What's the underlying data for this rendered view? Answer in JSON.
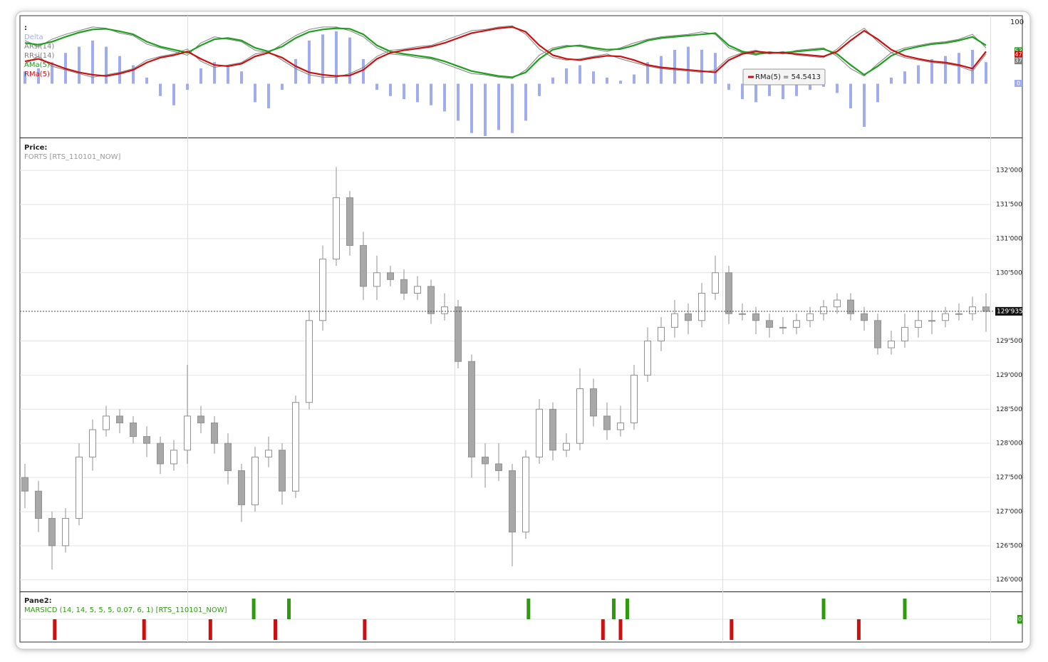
{
  "chart_data": [
    {
      "type": "indicator",
      "title": ":",
      "ylim": [
        0,
        100
      ],
      "yticks": [
        100
      ],
      "y2lim": [
        -85,
        100
      ],
      "series": [
        {
          "name": "Delta",
          "color": "#9fadf0",
          "kind": "bar",
          "axis": "y2",
          "values": [
            20,
            25,
            35,
            50,
            60,
            70,
            60,
            45,
            30,
            10,
            -20,
            -35,
            -10,
            25,
            35,
            30,
            20,
            -30,
            -40,
            -10,
            40,
            70,
            80,
            85,
            75,
            40,
            -10,
            -20,
            -25,
            -30,
            -35,
            -45,
            -60,
            -80,
            -85,
            -75,
            -80,
            -60,
            -20,
            10,
            25,
            30,
            20,
            10,
            5,
            15,
            35,
            45,
            55,
            60,
            55,
            50,
            -10,
            -25,
            -30,
            -20,
            -25,
            -20,
            -10,
            -5,
            -15,
            -40,
            -70,
            -30,
            10,
            20,
            30,
            40,
            45,
            50,
            55,
            35
          ]
        },
        {
          "name": "ARsi(14)",
          "color": "#808080",
          "kind": "line",
          "values": [
            70,
            60,
            72,
            80,
            86,
            92,
            90,
            82,
            78,
            64,
            58,
            52,
            46,
            66,
            76,
            72,
            68,
            54,
            50,
            64,
            78,
            88,
            92,
            92,
            86,
            76,
            58,
            48,
            46,
            42,
            40,
            32,
            24,
            16,
            14,
            10,
            8,
            22,
            46,
            58,
            62,
            60,
            56,
            52,
            58,
            66,
            72,
            76,
            78,
            80,
            84,
            80,
            58,
            50,
            46,
            52,
            48,
            54,
            56,
            58,
            44,
            24,
            12,
            32,
            50,
            58,
            62,
            66,
            68,
            72,
            80,
            58
          ]
        },
        {
          "name": "RRsi(14)",
          "color": "#808080",
          "kind": "line",
          "values": [
            32,
            44,
            28,
            22,
            16,
            10,
            14,
            18,
            24,
            38,
            44,
            48,
            56,
            36,
            26,
            30,
            34,
            48,
            52,
            38,
            24,
            14,
            10,
            10,
            16,
            26,
            44,
            54,
            56,
            60,
            62,
            70,
            78,
            86,
            88,
            92,
            94,
            80,
            56,
            42,
            38,
            40,
            44,
            48,
            40,
            34,
            28,
            24,
            22,
            20,
            18,
            22,
            42,
            50,
            54,
            48,
            52,
            46,
            44,
            42,
            56,
            76,
            90,
            68,
            50,
            42,
            38,
            34,
            32,
            28,
            20,
            48
          ]
        },
        {
          "name": "AMa(5)",
          "color": "#1ea01e",
          "kind": "line",
          "values": [
            66,
            63,
            68,
            76,
            83,
            88,
            89,
            85,
            80,
            68,
            60,
            55,
            50,
            62,
            72,
            74,
            70,
            58,
            52,
            60,
            74,
            84,
            88,
            90,
            89,
            80,
            62,
            52,
            48,
            45,
            42,
            36,
            28,
            20,
            16,
            12,
            10,
            18,
            40,
            55,
            60,
            62,
            58,
            55,
            56,
            62,
            70,
            74,
            76,
            78,
            80,
            82,
            62,
            52,
            48,
            50,
            50,
            52,
            54,
            56,
            48,
            30,
            14,
            28,
            45,
            55,
            60,
            64,
            66,
            70,
            76,
            62
          ]
        },
        {
          "name": "RMa(5)",
          "color": "#cc1010",
          "kind": "line",
          "values": [
            36,
            40,
            32,
            24,
            18,
            14,
            12,
            16,
            22,
            34,
            42,
            46,
            52,
            40,
            30,
            28,
            32,
            44,
            50,
            42,
            28,
            18,
            14,
            12,
            13,
            22,
            40,
            50,
            54,
            57,
            60,
            66,
            74,
            82,
            86,
            90,
            92,
            84,
            62,
            46,
            40,
            38,
            42,
            45,
            44,
            38,
            30,
            26,
            24,
            22,
            20,
            18,
            38,
            48,
            52,
            50,
            50,
            48,
            46,
            44,
            52,
            70,
            86,
            72,
            55,
            45,
            40,
            36,
            34,
            30,
            24,
            52
          ]
        }
      ],
      "value_markers": [
        {
          "value": 53,
          "color": "#1ea01e"
        },
        {
          "value": 47,
          "color": "#cc1010"
        },
        {
          "value": 37,
          "color": "#808080"
        },
        {
          "value": 0,
          "color": "#9fadf0"
        }
      ],
      "tooltip": "RMa(5) = 54.5413"
    },
    {
      "type": "candlestick",
      "title": "Price:",
      "subtitle": "FORTS [RTS_110101_NOW]",
      "color": "#a8a8a8",
      "ylim": [
        125830,
        132450
      ],
      "yticks": [
        {
          "value": 126000,
          "label": "126'000"
        },
        {
          "value": 126500,
          "label": "126'500"
        },
        {
          "value": 127000,
          "label": "127'000"
        },
        {
          "value": 127500,
          "label": "127'500"
        },
        {
          "value": 128000,
          "label": "128'000"
        },
        {
          "value": 128500,
          "label": "128'500"
        },
        {
          "value": 129000,
          "label": "129'000"
        },
        {
          "value": 129500,
          "label": "129'500"
        },
        {
          "value": 130500,
          "label": "130'500"
        },
        {
          "value": 131000,
          "label": "131'000"
        },
        {
          "value": 131500,
          "label": "131'500"
        },
        {
          "value": 132000,
          "label": "132'000"
        }
      ],
      "open": [
        127500,
        127300,
        126900,
        126500,
        126900,
        127800,
        128200,
        128400,
        128300,
        128100,
        128000,
        127700,
        127900,
        128400,
        128300,
        128000,
        127600,
        127100,
        127800,
        127900,
        127300,
        128600,
        129800,
        130700,
        131600,
        130900,
        130300,
        130500,
        130400,
        130200,
        130300,
        129900,
        130000,
        129200,
        127800,
        127700,
        127600,
        126700,
        127800,
        128500,
        127900,
        128000,
        128800,
        128400,
        128200,
        128300,
        129000,
        129500,
        129700,
        129900,
        129800,
        130200,
        130500,
        129900,
        129900,
        129800,
        129700,
        129700,
        129800,
        129900,
        130000,
        130100,
        129900,
        129800,
        129400,
        129500,
        129700,
        129800,
        129800,
        129900,
        129900,
        130000
      ],
      "high": [
        127700,
        127450,
        127000,
        127050,
        128000,
        128350,
        128550,
        128500,
        128400,
        128250,
        128100,
        128050,
        129150,
        128550,
        128400,
        128150,
        127700,
        127950,
        128100,
        128000,
        128700,
        129950,
        130900,
        132050,
        131700,
        131100,
        130750,
        130600,
        130550,
        130450,
        130400,
        130200,
        130100,
        129300,
        128000,
        128000,
        127700,
        127900,
        128650,
        128600,
        128150,
        129100,
        128950,
        128600,
        128550,
        129150,
        129700,
        129850,
        130100,
        130050,
        130350,
        130750,
        130600,
        130050,
        130000,
        129900,
        129850,
        129900,
        130000,
        130100,
        130200,
        130200,
        130000,
        129900,
        129650,
        129900,
        129950,
        129950,
        130000,
        130050,
        130150,
        130200
      ],
      "low": [
        127050,
        126700,
        126150,
        126400,
        126800,
        127600,
        128100,
        128150,
        128000,
        127800,
        127550,
        127600,
        127700,
        128150,
        127850,
        127400,
        126850,
        127000,
        127650,
        127100,
        127200,
        128500,
        129650,
        130600,
        130750,
        130100,
        130100,
        130300,
        130100,
        130100,
        129750,
        129800,
        129100,
        127500,
        127350,
        127450,
        126200,
        126600,
        127700,
        127750,
        127800,
        127900,
        128250,
        128050,
        128100,
        128200,
        128900,
        129350,
        129550,
        129600,
        129700,
        130100,
        129750,
        129800,
        129600,
        129550,
        129600,
        129600,
        129700,
        129800,
        129900,
        129800,
        129650,
        129300,
        129300,
        129400,
        129550,
        129600,
        129700,
        129800,
        129800,
        129635
      ],
      "close": [
        127300,
        126900,
        126500,
        126900,
        127800,
        128200,
        128400,
        128300,
        128100,
        128000,
        127700,
        127900,
        128400,
        128300,
        128000,
        127600,
        127100,
        127800,
        127900,
        127300,
        128600,
        129800,
        130700,
        131600,
        130900,
        130300,
        130500,
        130400,
        130200,
        130300,
        129900,
        130000,
        129200,
        127800,
        127700,
        127600,
        126700,
        127800,
        128500,
        127900,
        128000,
        128800,
        128400,
        128200,
        128300,
        129000,
        129500,
        129700,
        129900,
        129800,
        130200,
        130500,
        129900,
        129900,
        129800,
        129700,
        129700,
        129800,
        129900,
        130000,
        130100,
        129900,
        129800,
        129400,
        129500,
        129700,
        129800,
        129800,
        129900,
        129900,
        130000,
        129935
      ],
      "last_price": {
        "value": 129935,
        "label": "129'935"
      }
    },
    {
      "type": "signal",
      "title": "Pane2:",
      "subtitle": "MARSICD (14, 14, 5, 5, 5, 0.07, 6, 1) [RTS_110101_NOW]",
      "ylim": [
        -1,
        1
      ],
      "yticks": [
        0
      ],
      "series": [
        {
          "color": "#2e9a10",
          "x": [
            16.9,
            19.5,
            37.2,
            43.5,
            44.5,
            59,
            65
          ],
          "values": [
            1,
            1,
            1,
            1,
            1,
            1,
            1
          ]
        },
        {
          "color": "#cc1010",
          "x": [
            2.2,
            8.8,
            13.7,
            18.5,
            25.1,
            42.7,
            44,
            52.2,
            61.6
          ],
          "values": [
            -1,
            -1,
            -1,
            -1,
            -1,
            -1,
            -1,
            -1,
            -1
          ]
        }
      ]
    }
  ]
}
